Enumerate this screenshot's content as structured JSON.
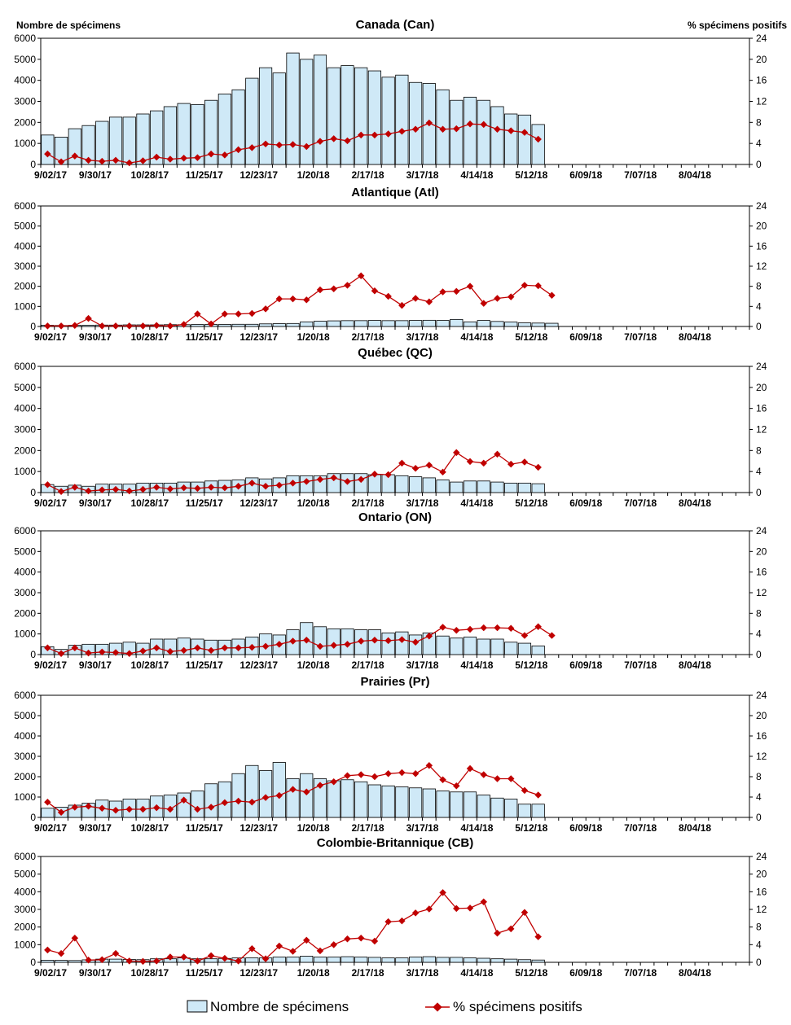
{
  "header": {
    "left_axis_title": "Nombre de spécimens",
    "right_axis_title": "% spécimens positifs"
  },
  "legend": {
    "bars_label": "Nombre de spécimens",
    "line_label": "% spécimens positifs"
  },
  "colors": {
    "bar_fill": "#cfe9f7",
    "bar_stroke": "#000000",
    "line": "#c00000"
  },
  "chart_data": [
    {
      "type": "bar",
      "title": "Canada (Can)",
      "ylim": [
        0,
        6000
      ],
      "y2lim": [
        0,
        24
      ],
      "yticks": [
        0,
        1000,
        2000,
        3000,
        4000,
        5000,
        6000
      ],
      "y2ticks": [
        0,
        4,
        8,
        12,
        16,
        20,
        24
      ],
      "xlabels": [
        "9/02/17",
        "9/30/17",
        "10/28/17",
        "11/25/17",
        "12/23/17",
        "1/20/18",
        "2/17/18",
        "3/17/18",
        "4/14/18",
        "5/12/18",
        "6/09/18",
        "7/07/18",
        "8/04/18"
      ],
      "series": [
        {
          "name": "Nombre de spécimens",
          "values": [
            1400,
            1300,
            1700,
            1850,
            2050,
            2250,
            2250,
            2400,
            2550,
            2750,
            2900,
            2850,
            3050,
            3350,
            3550,
            4100,
            4600,
            4350,
            5300,
            5000,
            5200,
            4600,
            4700,
            4600,
            4450,
            4150,
            4250,
            3900,
            3850,
            3550,
            3050,
            3200,
            3050,
            2750,
            2400,
            2350,
            1900
          ]
        },
        {
          "name": "% spécimens positifs",
          "values": [
            2.0,
            0.5,
            1.6,
            0.8,
            0.6,
            0.8,
            0.3,
            0.7,
            1.4,
            1.0,
            1.2,
            1.3,
            2.0,
            1.8,
            2.8,
            3.2,
            3.9,
            3.7,
            3.8,
            3.4,
            4.4,
            4.9,
            4.5,
            5.6,
            5.6,
            5.8,
            6.3,
            6.7,
            7.9,
            6.7,
            6.8,
            7.7,
            7.6,
            6.7,
            6.4,
            6.1,
            4.8
          ]
        }
      ]
    },
    {
      "type": "bar",
      "title": "Atlantique (Atl)",
      "ylim": [
        0,
        6000
      ],
      "y2lim": [
        0,
        24
      ],
      "yticks": [
        0,
        1000,
        2000,
        3000,
        4000,
        5000,
        6000
      ],
      "y2ticks": [
        0,
        4,
        8,
        12,
        16,
        20,
        24
      ],
      "xlabels": [
        "9/02/17",
        "9/30/17",
        "10/28/17",
        "11/25/17",
        "12/23/17",
        "1/20/18",
        "2/17/18",
        "3/17/18",
        "4/14/18",
        "5/12/18",
        "6/09/18",
        "7/07/18",
        "8/04/18"
      ],
      "series": [
        {
          "name": "Nombre de spécimens",
          "values": [
            60,
            50,
            60,
            60,
            70,
            70,
            80,
            80,
            80,
            90,
            90,
            100,
            100,
            100,
            110,
            110,
            130,
            140,
            150,
            230,
            260,
            280,
            290,
            290,
            300,
            290,
            290,
            300,
            310,
            300,
            350,
            230,
            300,
            250,
            220,
            180,
            170,
            160
          ]
        },
        {
          "name": "% spécimens positifs",
          "values": [
            0.1,
            0.1,
            0.2,
            1.6,
            0.1,
            0.1,
            0.1,
            0.1,
            0.2,
            0.1,
            0.4,
            2.5,
            0.5,
            2.5,
            2.5,
            2.6,
            3.5,
            5.5,
            5.5,
            5.3,
            7.3,
            7.5,
            8.2,
            10.1,
            7.1,
            6.0,
            4.2,
            5.6,
            4.9,
            6.9,
            7.0,
            8.0,
            4.6,
            5.6,
            5.9,
            8.2,
            8.1,
            6.2
          ]
        }
      ]
    },
    {
      "type": "bar",
      "title": "Québec (QC)",
      "ylim": [
        0,
        6000
      ],
      "y2lim": [
        0,
        24
      ],
      "yticks": [
        0,
        1000,
        2000,
        3000,
        4000,
        5000,
        6000
      ],
      "y2ticks": [
        0,
        4,
        8,
        12,
        16,
        20,
        24
      ],
      "xlabels": [
        "9/02/17",
        "9/30/17",
        "10/28/17",
        "11/25/17",
        "12/23/17",
        "1/20/18",
        "2/17/18",
        "3/17/18",
        "4/14/18",
        "5/12/18",
        "6/09/18",
        "7/07/18",
        "8/04/18"
      ],
      "series": [
        {
          "name": "Nombre de spécimens",
          "values": [
            380,
            300,
            350,
            300,
            400,
            400,
            400,
            450,
            450,
            450,
            500,
            500,
            550,
            580,
            600,
            700,
            650,
            700,
            800,
            800,
            800,
            900,
            900,
            900,
            850,
            850,
            800,
            750,
            700,
            600,
            500,
            550,
            550,
            500,
            450,
            450,
            420
          ]
        },
        {
          "name": "% spécimens positifs",
          "values": [
            1.5,
            0.2,
            1.0,
            0.3,
            0.5,
            0.6,
            0.3,
            0.6,
            1.0,
            0.7,
            0.9,
            0.8,
            1.0,
            0.9,
            1.2,
            1.8,
            1.2,
            1.4,
            1.8,
            2.1,
            2.5,
            2.8,
            2.1,
            2.5,
            3.5,
            3.4,
            5.6,
            4.6,
            5.2,
            3.9,
            7.6,
            5.9,
            5.6,
            7.3,
            5.4,
            5.8,
            4.8
          ]
        }
      ]
    },
    {
      "type": "bar",
      "title": "Ontario (ON)",
      "ylim": [
        0,
        6000
      ],
      "y2lim": [
        0,
        24
      ],
      "yticks": [
        0,
        1000,
        2000,
        3000,
        4000,
        5000,
        6000
      ],
      "y2ticks": [
        0,
        4,
        8,
        12,
        16,
        20,
        24
      ],
      "xlabels": [
        "9/02/17",
        "9/30/17",
        "10/28/17",
        "11/25/17",
        "12/23/17",
        "1/20/18",
        "2/17/18",
        "3/17/18",
        "4/14/18",
        "5/12/18",
        "6/09/18",
        "7/07/18",
        "8/04/18"
      ],
      "series": [
        {
          "name": "Nombre de spécimens",
          "values": [
            380,
            250,
            450,
            500,
            500,
            550,
            600,
            550,
            750,
            750,
            800,
            750,
            700,
            700,
            750,
            850,
            1000,
            950,
            1200,
            1550,
            1350,
            1250,
            1250,
            1200,
            1200,
            1050,
            1100,
            950,
            1050,
            900,
            800,
            850,
            750,
            750,
            600,
            550,
            420
          ]
        },
        {
          "name": "% spécimens positifs",
          "values": [
            1.3,
            0.2,
            1.3,
            0.3,
            0.5,
            0.4,
            0.2,
            0.7,
            1.3,
            0.6,
            0.8,
            1.3,
            0.8,
            1.3,
            1.3,
            1.4,
            1.6,
            2.0,
            2.6,
            2.8,
            1.6,
            1.8,
            2.0,
            2.6,
            2.8,
            2.7,
            2.9,
            2.4,
            3.6,
            5.3,
            4.7,
            4.9,
            5.2,
            5.2,
            5.1,
            3.7,
            5.4,
            3.7
          ]
        }
      ]
    },
    {
      "type": "bar",
      "title": "Prairies (Pr)",
      "ylim": [
        0,
        6000
      ],
      "y2lim": [
        0,
        24
      ],
      "yticks": [
        0,
        1000,
        2000,
        3000,
        4000,
        5000,
        6000
      ],
      "y2ticks": [
        0,
        4,
        8,
        12,
        16,
        20,
        24
      ],
      "xlabels": [
        "9/02/17",
        "9/30/17",
        "10/28/17",
        "11/25/17",
        "12/23/17",
        "1/20/18",
        "2/17/18",
        "3/17/18",
        "4/14/18",
        "5/12/18",
        "6/09/18",
        "7/07/18",
        "8/04/18"
      ],
      "series": [
        {
          "name": "Nombre de spécimens",
          "values": [
            450,
            500,
            600,
            700,
            850,
            800,
            900,
            900,
            1050,
            1100,
            1200,
            1300,
            1650,
            1750,
            2150,
            2550,
            2300,
            2700,
            1900,
            2150,
            1900,
            1800,
            1850,
            1750,
            1600,
            1550,
            1500,
            1450,
            1400,
            1300,
            1250,
            1250,
            1100,
            950,
            900,
            650,
            650
          ]
        },
        {
          "name": "% spécimens positifs",
          "values": [
            3.0,
            1.0,
            2.0,
            2.2,
            1.8,
            1.4,
            1.6,
            1.6,
            1.9,
            1.6,
            3.4,
            1.6,
            2.0,
            2.9,
            3.2,
            3.0,
            3.9,
            4.3,
            5.5,
            5.0,
            6.3,
            7.0,
            8.2,
            8.4,
            8.0,
            8.6,
            8.8,
            8.6,
            10.2,
            7.4,
            6.2,
            9.6,
            8.4,
            7.6,
            7.6,
            5.3,
            4.4
          ]
        }
      ]
    },
    {
      "type": "bar",
      "title": "Colombie-Britannique (CB)",
      "ylim": [
        0,
        6000
      ],
      "y2lim": [
        0,
        24
      ],
      "yticks": [
        0,
        1000,
        2000,
        3000,
        4000,
        5000,
        6000
      ],
      "y2ticks": [
        0,
        4,
        8,
        12,
        16,
        20,
        24
      ],
      "xlabels": [
        "9/02/17",
        "9/30/17",
        "10/28/17",
        "11/25/17",
        "12/23/17",
        "1/20/18",
        "2/17/18",
        "3/17/18",
        "4/14/18",
        "5/12/18",
        "6/09/18",
        "7/07/18",
        "8/04/18"
      ],
      "series": [
        {
          "name": "Nombre de spécimens",
          "values": [
            120,
            110,
            100,
            140,
            180,
            180,
            160,
            150,
            200,
            200,
            250,
            200,
            200,
            220,
            250,
            250,
            250,
            300,
            300,
            350,
            300,
            300,
            320,
            300,
            280,
            250,
            250,
            300,
            320,
            280,
            280,
            250,
            230,
            200,
            180,
            150,
            130
          ]
        },
        {
          "name": "% spécimens positifs",
          "values": [
            2.8,
            2.0,
            5.5,
            0.5,
            0.6,
            2.0,
            0.3,
            0.2,
            0.3,
            1.2,
            1.2,
            0.3,
            1.5,
            0.9,
            0.3,
            3.1,
            0.8,
            3.7,
            2.5,
            5.0,
            2.6,
            4.0,
            5.3,
            5.5,
            4.8,
            9.2,
            9.4,
            11.2,
            12.1,
            15.8,
            12.2,
            12.3,
            13.7,
            6.6,
            7.6,
            11.3,
            5.8
          ]
        }
      ]
    }
  ]
}
